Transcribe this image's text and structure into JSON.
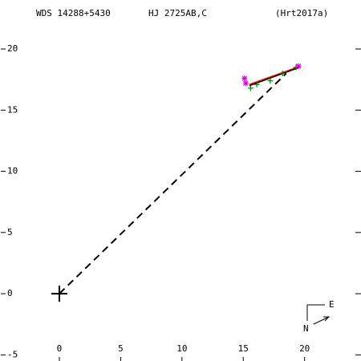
{
  "header": {
    "wds": "WDS 14288+5430",
    "name": "HJ 2725AB,C",
    "reference": "(Hrt2017a)"
  },
  "compass": {
    "east": "E",
    "north": "N"
  },
  "chart_data": {
    "type": "scatter",
    "xlim": [
      -4.84,
      24.6
    ],
    "ylim": [
      -5.5,
      24
    ],
    "xticks": [
      0,
      5,
      10,
      15,
      20
    ],
    "yticks": [
      -5,
      0,
      5,
      10,
      15,
      20
    ],
    "series": [
      {
        "marker": "line",
        "dash": true,
        "color": "#000000",
        "x": [
          0,
          18.5
        ],
        "values": [
          0,
          18.0
        ]
      },
      {
        "marker": "line",
        "color": "#ff0000",
        "x": [
          15.5,
          19.4
        ],
        "values": [
          17.1,
          18.5
        ]
      },
      {
        "marker": "line",
        "color": "#000000",
        "x": [
          15.5,
          19.6
        ],
        "values": [
          17.0,
          18.5
        ]
      },
      {
        "marker": "plus",
        "color": "#008000",
        "x": [
          15.6,
          16.1,
          17.2,
          18.2,
          19.3
        ],
        "values": [
          16.8,
          17.1,
          17.4,
          18.0,
          18.5
        ]
      },
      {
        "marker": "asterisk",
        "color": "#e000e0",
        "x": [
          15.1,
          15.2,
          19.5
        ],
        "values": [
          17.6,
          17.2,
          18.6
        ]
      },
      {
        "marker": "bigplus",
        "color": "#000000",
        "x": [
          0
        ],
        "values": [
          0
        ]
      }
    ]
  }
}
